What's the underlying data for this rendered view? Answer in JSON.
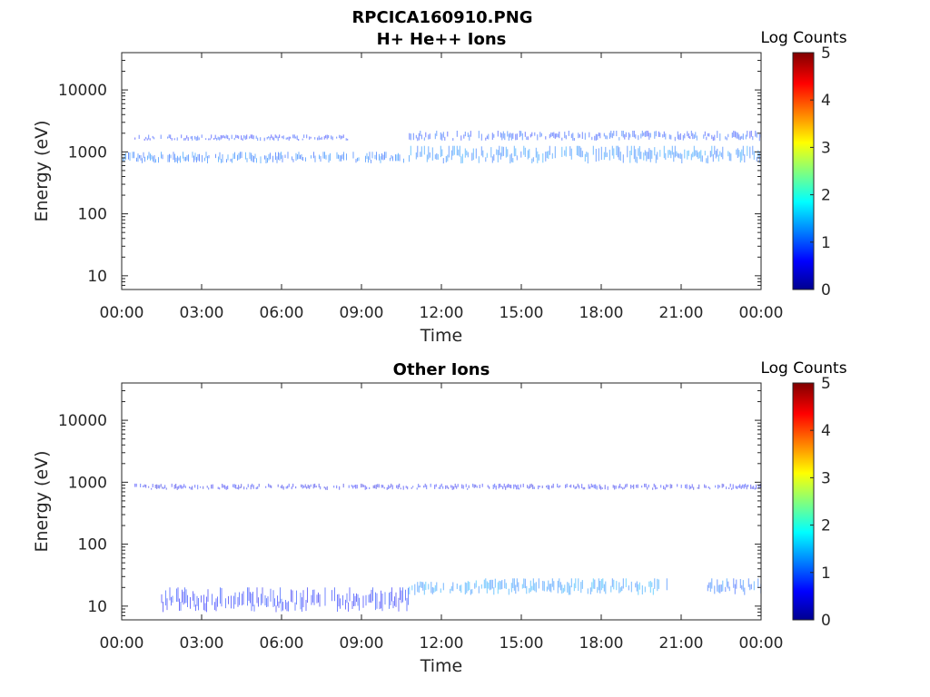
{
  "figure_title": "RPCICA160910.PNG",
  "colorbar_label": "Log Counts",
  "colorbar_ticks": [
    "0",
    "1",
    "2",
    "3",
    "4",
    "5"
  ],
  "chart_data": [
    {
      "type": "heatmap",
      "title": "H+ He++ Ions",
      "xlabel": "Time",
      "ylabel": "Energy (eV)",
      "x_ticks": [
        "00:00",
        "03:00",
        "06:00",
        "09:00",
        "12:00",
        "15:00",
        "18:00",
        "21:00",
        "00:00"
      ],
      "x_range_hours": [
        0,
        24
      ],
      "y_ticks": [
        "10",
        "100",
        "1000",
        "10000"
      ],
      "y_tick_values": [
        10,
        100,
        1000,
        10000
      ],
      "ylim": [
        6,
        40000
      ],
      "y_scale": "log",
      "color_scale": "jet",
      "color_range": [
        0,
        5
      ],
      "bands": [
        {
          "t_start": 0.0,
          "t_end": 10.8,
          "e_low": 650,
          "e_high": 1000,
          "log_counts": 1.1
        },
        {
          "t_start": 10.8,
          "t_end": 24.0,
          "e_low": 650,
          "e_high": 1250,
          "log_counts": 1.2
        },
        {
          "t_start": 0.5,
          "t_end": 8.5,
          "e_low": 1500,
          "e_high": 1900,
          "log_counts": 0.8
        },
        {
          "t_start": 10.8,
          "t_end": 24.0,
          "e_low": 1500,
          "e_high": 2200,
          "log_counts": 0.9
        }
      ]
    },
    {
      "type": "heatmap",
      "title": "Other Ions",
      "xlabel": "Time",
      "ylabel": "Energy (eV)",
      "x_ticks": [
        "00:00",
        "03:00",
        "06:00",
        "09:00",
        "12:00",
        "15:00",
        "18:00",
        "21:00",
        "00:00"
      ],
      "x_range_hours": [
        0,
        24
      ],
      "y_ticks": [
        "10",
        "100",
        "1000",
        "10000"
      ],
      "y_tick_values": [
        10,
        100,
        1000,
        10000
      ],
      "ylim": [
        6,
        40000
      ],
      "y_scale": "log",
      "color_scale": "jet",
      "color_range": [
        0,
        5
      ],
      "bands": [
        {
          "t_start": 0.5,
          "t_end": 24.0,
          "e_low": 750,
          "e_high": 950,
          "log_counts": 0.6
        },
        {
          "t_start": 10.8,
          "t_end": 20.5,
          "e_low": 15,
          "e_high": 28,
          "log_counts": 1.3
        },
        {
          "t_start": 22.0,
          "t_end": 24.0,
          "e_low": 15,
          "e_high": 28,
          "log_counts": 1.1
        },
        {
          "t_start": 1.5,
          "t_end": 10.8,
          "e_low": 8,
          "e_high": 20,
          "log_counts": 0.7
        }
      ]
    }
  ]
}
